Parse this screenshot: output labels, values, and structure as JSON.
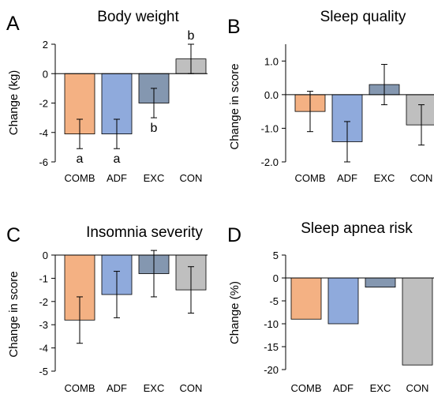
{
  "colors": {
    "COMB": "#F4B183",
    "ADF": "#8FAADC",
    "EXC": "#8497B0",
    "CON": "#BFBFBF",
    "edge": "#000000"
  },
  "chart_data": [
    {
      "panel": "A",
      "type": "bar",
      "title": "Body weight",
      "ylabel": "Change (kg)",
      "xlabel": "",
      "categories": [
        "COMB",
        "ADF",
        "EXC",
        "CON"
      ],
      "values": [
        -4.1,
        -4.1,
        -2.0,
        1.0
      ],
      "errors": [
        1.0,
        1.0,
        1.0,
        1.0
      ],
      "letters": [
        "a",
        "a",
        "b",
        "b"
      ],
      "ylim": [
        -6,
        2
      ],
      "yticks": [
        2,
        0,
        -2,
        -4,
        -6
      ],
      "ytick_labels": [
        "2",
        "0",
        "-2",
        "-4",
        "-6"
      ],
      "grid": false,
      "legend": "none"
    },
    {
      "panel": "B",
      "type": "bar",
      "title": "Sleep quality",
      "ylabel": "Change in score",
      "xlabel": "",
      "categories": [
        "COMB",
        "ADF",
        "EXC",
        "CON"
      ],
      "values": [
        -0.5,
        -1.4,
        0.3,
        -0.9
      ],
      "errors": [
        0.6,
        0.6,
        0.6,
        0.6
      ],
      "ylim": [
        -2.0,
        1.5
      ],
      "yticks": [
        1.0,
        0.0,
        -1.0,
        -2.0
      ],
      "ytick_labels": [
        "1.0",
        "0.0",
        "-1.0",
        "-2.0"
      ],
      "grid": false,
      "legend": "none"
    },
    {
      "panel": "C",
      "type": "bar",
      "title": "Insomnia severity",
      "ylabel": "Change in score",
      "xlabel": "",
      "categories": [
        "COMB",
        "ADF",
        "EXC",
        "CON"
      ],
      "values": [
        -2.8,
        -1.7,
        -0.8,
        -1.5
      ],
      "errors": [
        1.0,
        1.0,
        1.0,
        1.0
      ],
      "ylim": [
        -5,
        0
      ],
      "yticks": [
        0,
        -1,
        -2,
        -3,
        -4,
        -5
      ],
      "ytick_labels": [
        "0",
        "-1",
        "-2",
        "-3",
        "-4",
        "-5"
      ],
      "grid": false,
      "legend": "none"
    },
    {
      "panel": "D",
      "type": "bar",
      "title": "Sleep apnea risk",
      "ylabel": "Change (%)",
      "xlabel": "",
      "categories": [
        "COMB",
        "ADF",
        "EXC",
        "CON"
      ],
      "values": [
        -9,
        -10,
        -2,
        -19
      ],
      "ylim": [
        -20,
        5
      ],
      "yticks": [
        5,
        0,
        -5,
        -10,
        -15,
        -20
      ],
      "ytick_labels": [
        "5",
        "0",
        "-5",
        "-10",
        "-15",
        "-20"
      ],
      "grid": false,
      "legend": "none"
    }
  ]
}
